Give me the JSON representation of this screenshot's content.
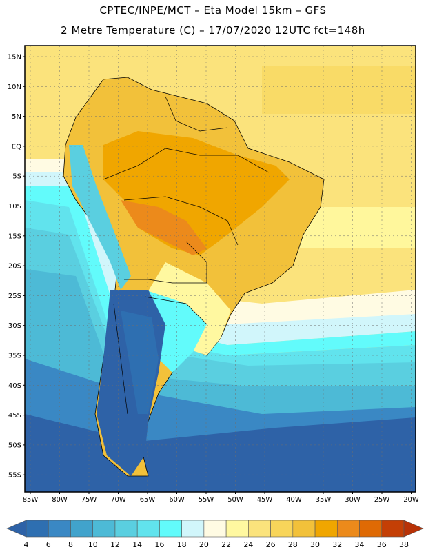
{
  "title_line1": "CPTEC/INPE/MCT –  Eta Model 15km – GFS",
  "title_line2": "2 Metre Temperature (C) – 17/07/2020 12UTC fct=148h",
  "lat_labels": [
    "15N",
    "10N",
    "5N",
    "EQ",
    "5S",
    "10S",
    "15S",
    "20S",
    "25S",
    "30S",
    "35S",
    "40S",
    "45S",
    "50S",
    "55S"
  ],
  "lon_labels": [
    "85W",
    "80W",
    "75W",
    "70W",
    "65W",
    "60W",
    "55W",
    "50W",
    "45W",
    "40W",
    "35W",
    "30W",
    "25W",
    "20W"
  ],
  "colorbar": {
    "ticks": [
      "4",
      "6",
      "8",
      "10",
      "12",
      "14",
      "16",
      "18",
      "20",
      "22",
      "24",
      "26",
      "28",
      "30",
      "32",
      "34",
      "36",
      "38"
    ],
    "colors": [
      "#2e62a7",
      "#2e6fb1",
      "#3a88c4",
      "#41a3cc",
      "#4dbad6",
      "#5acfe0",
      "#61e3ed",
      "#62fbfb",
      "#d1f6fb",
      "#fffbe3",
      "#fff8a0",
      "#fbe37c",
      "#f8d55a",
      "#f2c13a",
      "#f0a600",
      "#ec8a1b",
      "#df6a04",
      "#c43f05",
      "#b83206"
    ]
  }
}
